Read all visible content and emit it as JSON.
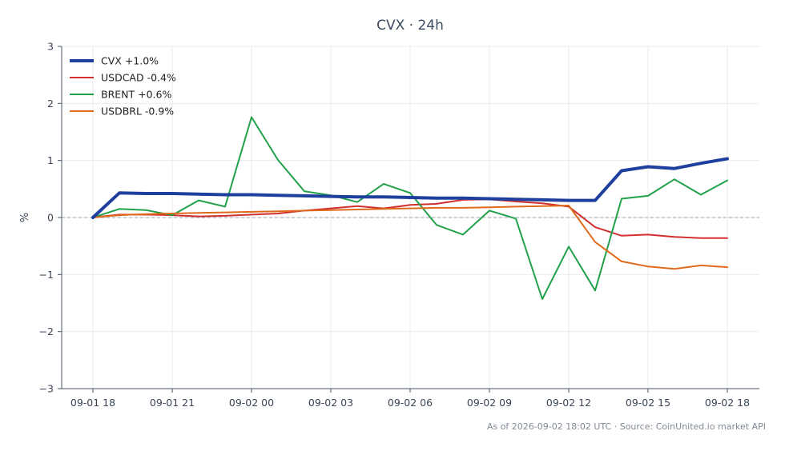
{
  "chart_data": {
    "type": "line",
    "title": "CVX · 24h",
    "xlabel": "",
    "ylabel": "%",
    "ylim": [
      -3,
      3
    ],
    "y_ticks": [
      3,
      2,
      1,
      0,
      -1,
      -2,
      -3
    ],
    "y_tick_labels": [
      "3",
      "2",
      "1",
      "0",
      "−1",
      "−2",
      "−3"
    ],
    "x_ticks": [
      "09-01 18",
      "09-01 21",
      "09-02 00",
      "09-02 03",
      "09-02 06",
      "09-02 09",
      "09-02 12",
      "09-02 15",
      "09-02 18"
    ],
    "x": [
      "09-01 18",
      "09-01 19",
      "09-01 20",
      "09-01 21",
      "09-01 22",
      "09-01 23",
      "09-02 00",
      "09-02 01",
      "09-02 02",
      "09-02 03",
      "09-02 04",
      "09-02 05",
      "09-02 06",
      "09-02 07",
      "09-02 08",
      "09-02 09",
      "09-02 10",
      "09-02 11",
      "09-02 12",
      "09-02 13",
      "09-02 14",
      "09-02 15",
      "09-02 16",
      "09-02 17",
      "09-02 18"
    ],
    "grid": true,
    "legend_position": "top-left",
    "zero_line": true,
    "series": [
      {
        "name": "CVX +1.0%",
        "color": "#1f3f9e",
        "width": 4,
        "values": [
          0.0,
          0.43,
          0.42,
          0.42,
          0.41,
          0.4,
          0.4,
          0.39,
          0.38,
          0.37,
          0.36,
          0.36,
          0.35,
          0.34,
          0.34,
          0.33,
          0.32,
          0.31,
          0.3,
          0.3,
          0.82,
          0.89,
          0.86,
          0.95,
          1.03
        ]
      },
      {
        "name": "USDCAD -0.4%",
        "color": "#d1302e",
        "width": 2,
        "values": [
          0.0,
          0.05,
          0.05,
          0.04,
          0.02,
          0.03,
          0.05,
          0.07,
          0.12,
          0.16,
          0.2,
          0.16,
          0.22,
          0.24,
          0.31,
          0.32,
          0.28,
          0.25,
          0.19,
          -0.17,
          -0.32,
          -0.3,
          -0.34,
          -0.36,
          -0.36
        ]
      },
      {
        "name": "BRENT +0.6%",
        "color": "#22a04a",
        "width": 2,
        "values": [
          0.0,
          0.15,
          0.13,
          0.04,
          0.3,
          0.19,
          1.76,
          1.01,
          0.46,
          0.39,
          0.27,
          0.59,
          0.43,
          -0.13,
          -0.3,
          0.12,
          -0.02,
          -1.43,
          -0.51,
          -1.28,
          0.33,
          0.38,
          0.67,
          0.4,
          0.65
        ]
      },
      {
        "name": "USDBRL -0.9%",
        "color": "#e06a1c",
        "width": 2,
        "values": [
          0.0,
          0.04,
          0.06,
          0.07,
          0.08,
          0.09,
          0.1,
          0.11,
          0.12,
          0.13,
          0.14,
          0.15,
          0.16,
          0.17,
          0.17,
          0.18,
          0.19,
          0.2,
          0.21,
          -0.43,
          -0.77,
          -0.86,
          -0.9,
          -0.84,
          -0.87
        ]
      }
    ],
    "footer": "As of 2026-09-02 18:02 UTC · Source: CoinUnited.io market API"
  }
}
